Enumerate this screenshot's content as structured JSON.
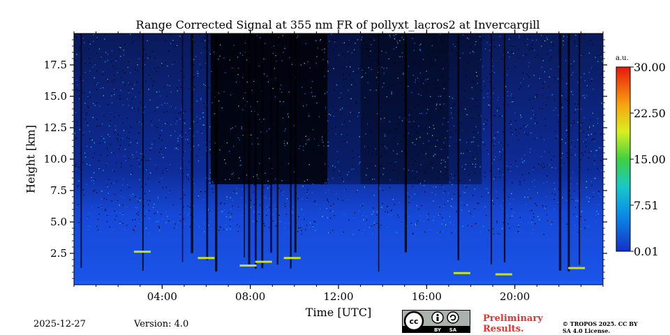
{
  "chart_data": {
    "type": "heatmap",
    "title": "Range Corrected Signal at 355 nm FR of pollyxt_lacros2 at Invercargill",
    "xlabel": "Time [UTC]",
    "ylabel": "Height [km]",
    "x_range_hours": [
      0,
      24
    ],
    "ylim": [
      0,
      20
    ],
    "x_ticks": [
      {
        "value": 4,
        "label": "04:00"
      },
      {
        "value": 8,
        "label": "08:00"
      },
      {
        "value": 12,
        "label": "12:00"
      },
      {
        "value": 16,
        "label": "16:00"
      },
      {
        "value": 20,
        "label": "20:00"
      }
    ],
    "y_ticks": [
      {
        "value": 2.5,
        "label": "2.5"
      },
      {
        "value": 5.0,
        "label": "5.0"
      },
      {
        "value": 7.5,
        "label": "7.5"
      },
      {
        "value": 10.0,
        "label": "10.0"
      },
      {
        "value": 12.5,
        "label": "12.5"
      },
      {
        "value": 15.0,
        "label": "15.0"
      },
      {
        "value": 17.5,
        "label": "17.5"
      }
    ],
    "colorbar": {
      "unit": "a.u.",
      "range": [
        0.01,
        30.0
      ],
      "ticks": [
        {
          "value": 30.0,
          "label": "30.00"
        },
        {
          "value": 22.5,
          "label": "22.50"
        },
        {
          "value": 15.0,
          "label": "15.00"
        },
        {
          "value": 7.51,
          "label": "7.51"
        },
        {
          "value": 0.01,
          "label": "0.01"
        }
      ]
    },
    "cloud_base_features": [
      {
        "time": 3.1,
        "height": 2.6
      },
      {
        "time": 6.0,
        "height": 2.1
      },
      {
        "time": 7.9,
        "height": 1.5
      },
      {
        "time": 8.6,
        "height": 1.8
      },
      {
        "time": 9.9,
        "height": 2.1
      },
      {
        "time": 17.6,
        "height": 0.9
      },
      {
        "time": 19.5,
        "height": 0.8
      },
      {
        "time": 22.8,
        "height": 1.3
      }
    ]
  },
  "footer": {
    "date": "2025-12-27",
    "version": "Version: 4.0",
    "preliminary": "Preliminary Results.",
    "copyright": "© TROPOS 2025. CC BY SA 4.0 License.",
    "license_badge": {
      "cc": "cc",
      "by": "BY",
      "sa": "SA"
    }
  }
}
